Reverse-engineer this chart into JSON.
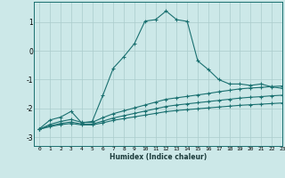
{
  "bg_color": "#cce8e8",
  "grid_color": "#aacccc",
  "line_color": "#1a7070",
  "xlabel": "Humidex (Indice chaleur)",
  "xlim": [
    -0.5,
    23
  ],
  "ylim": [
    -3.3,
    1.7
  ],
  "yticks": [
    -3,
    -2,
    -1,
    0,
    1
  ],
  "xticks": [
    0,
    1,
    2,
    3,
    4,
    5,
    6,
    7,
    8,
    9,
    10,
    11,
    12,
    13,
    14,
    15,
    16,
    17,
    18,
    19,
    20,
    21,
    22,
    23
  ],
  "series1_x": [
    0,
    1,
    2,
    3,
    4,
    5,
    6,
    7,
    8,
    9,
    10,
    11,
    12,
    13,
    14,
    15,
    16,
    17,
    18,
    19,
    20,
    21,
    22,
    23
  ],
  "series1_y": [
    -2.7,
    -2.4,
    -2.3,
    -2.1,
    -2.5,
    -2.45,
    -1.55,
    -0.6,
    -0.2,
    0.25,
    1.03,
    1.08,
    1.38,
    1.08,
    1.02,
    -0.35,
    -0.65,
    -1.0,
    -1.15,
    -1.15,
    -1.2,
    -1.15,
    -1.25,
    -1.3
  ],
  "series2_x": [
    0,
    1,
    2,
    3,
    4,
    5,
    6,
    7,
    8,
    9,
    10,
    11,
    12,
    13,
    14,
    15,
    16,
    17,
    18,
    19,
    20,
    21,
    22,
    23
  ],
  "series2_y": [
    -2.72,
    -2.55,
    -2.45,
    -2.38,
    -2.48,
    -2.48,
    -2.32,
    -2.18,
    -2.08,
    -1.98,
    -1.88,
    -1.78,
    -1.68,
    -1.63,
    -1.58,
    -1.53,
    -1.48,
    -1.42,
    -1.37,
    -1.32,
    -1.29,
    -1.27,
    -1.24,
    -1.22
  ],
  "series3_x": [
    0,
    1,
    2,
    3,
    4,
    5,
    6,
    7,
    8,
    9,
    10,
    11,
    12,
    13,
    14,
    15,
    16,
    17,
    18,
    19,
    20,
    21,
    22,
    23
  ],
  "series3_y": [
    -2.72,
    -2.6,
    -2.52,
    -2.47,
    -2.54,
    -2.54,
    -2.44,
    -2.33,
    -2.25,
    -2.17,
    -2.09,
    -2.01,
    -1.93,
    -1.88,
    -1.84,
    -1.8,
    -1.76,
    -1.72,
    -1.68,
    -1.64,
    -1.61,
    -1.59,
    -1.56,
    -1.54
  ],
  "series4_x": [
    0,
    1,
    2,
    3,
    4,
    5,
    6,
    7,
    8,
    9,
    10,
    11,
    12,
    13,
    14,
    15,
    16,
    17,
    18,
    19,
    20,
    21,
    22,
    23
  ],
  "series4_y": [
    -2.72,
    -2.63,
    -2.56,
    -2.52,
    -2.57,
    -2.57,
    -2.5,
    -2.41,
    -2.35,
    -2.29,
    -2.23,
    -2.17,
    -2.11,
    -2.07,
    -2.04,
    -2.01,
    -1.98,
    -1.95,
    -1.92,
    -1.89,
    -1.87,
    -1.85,
    -1.83,
    -1.81
  ]
}
